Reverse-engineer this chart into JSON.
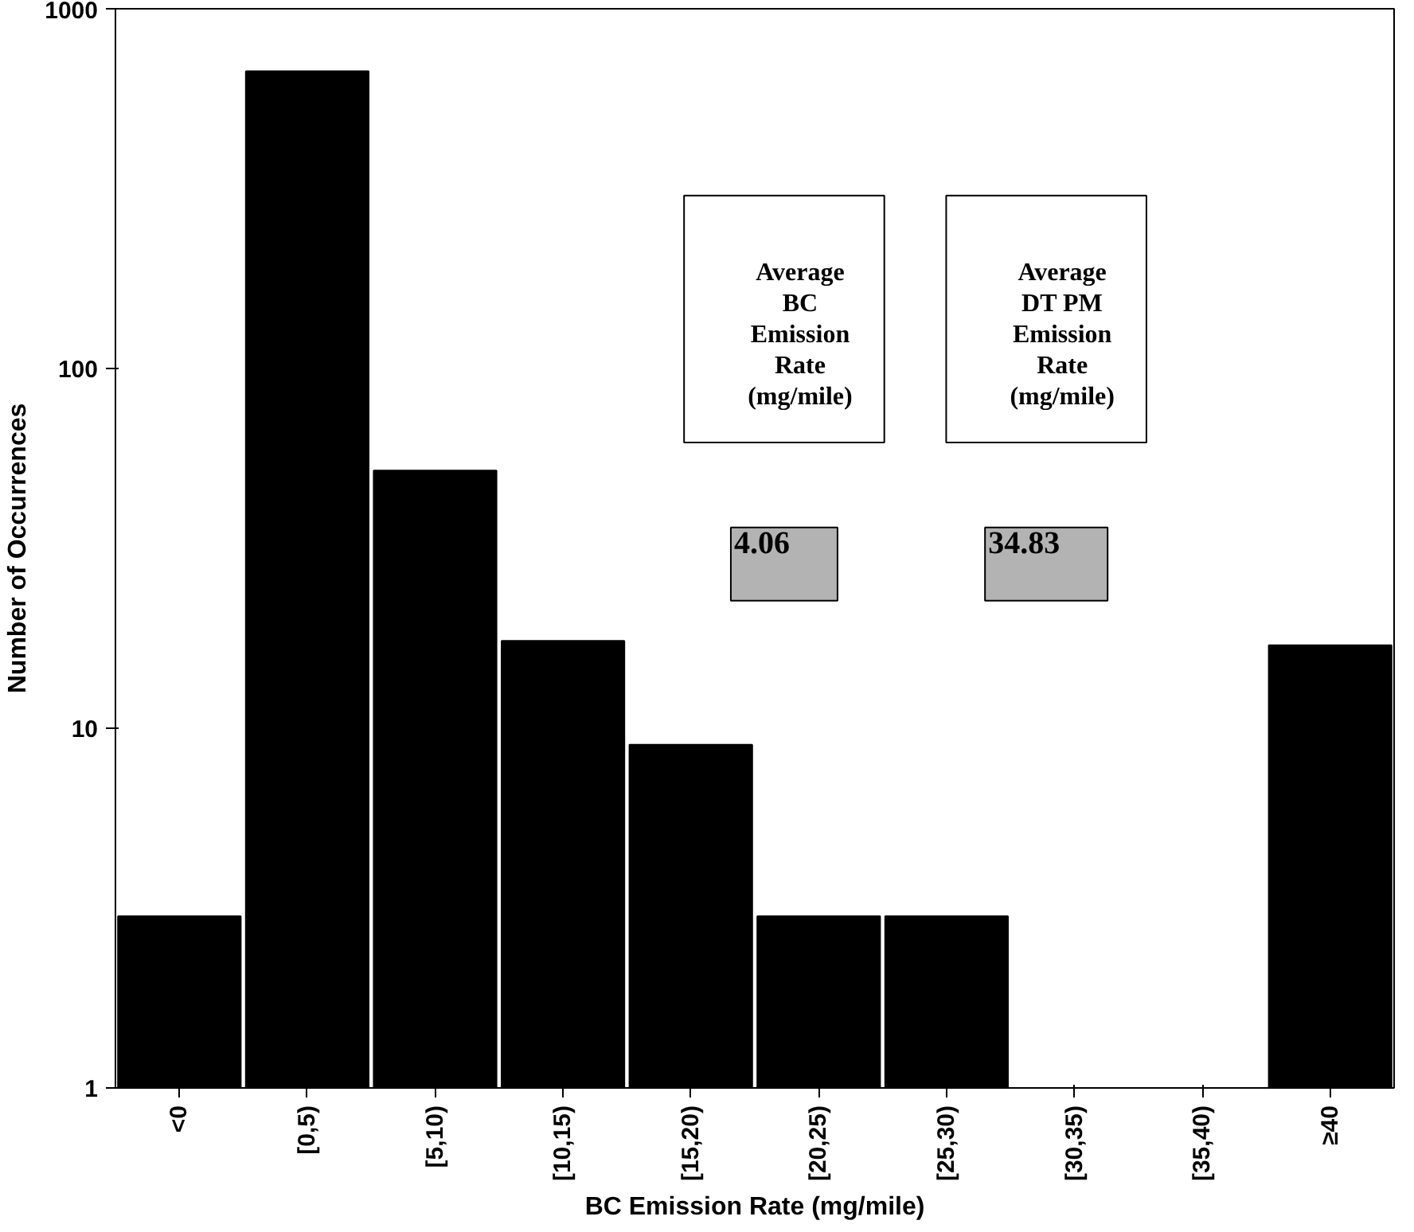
{
  "chart_data": {
    "type": "bar",
    "xlabel": "BC Emission Rate (mg/mile)",
    "ylabel": "Number of Occurrences",
    "categories": [
      "<0",
      "[0,5)",
      "[5,10)",
      "[10,15)",
      "[15,20)",
      "[20,25)",
      "[25,30)",
      "[30,35)",
      "[35,40)",
      "≥40"
    ],
    "values": [
      3,
      670,
      52,
      17.5,
      9,
      3,
      3,
      null,
      null,
      17
    ],
    "color": "#000000",
    "log": "y",
    "ylim": [
      1,
      1000
    ],
    "yticks": [
      1,
      10,
      100,
      1000
    ],
    "grid": false,
    "annotations": [
      "Average BC Emission Rate (mg/mile)",
      "Average DT PM Emission Rate (mg/mile)",
      "4.06",
      "34.83"
    ]
  }
}
